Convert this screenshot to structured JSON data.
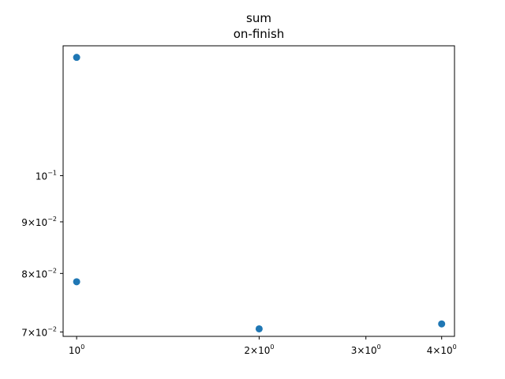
{
  "chart_data": {
    "type": "scatter",
    "title": "sum",
    "subtitle": "on-finish",
    "xlabel": "",
    "ylabel": "",
    "xscale": "log",
    "yscale": "log",
    "xlim": [
      0.95,
      4.2
    ],
    "ylim": [
      0.0693,
      0.1345
    ],
    "grid": false,
    "legend": "none",
    "marker_color": "#1f77b4",
    "x_ticks": [
      {
        "value": 1,
        "base": "10",
        "exp": "0"
      },
      {
        "value": 2,
        "base": "2×10",
        "exp": "0"
      },
      {
        "value": 3,
        "base": "3×10",
        "exp": "0"
      },
      {
        "value": 4,
        "base": "4×10",
        "exp": "0"
      }
    ],
    "y_ticks": [
      {
        "value": 0.07,
        "base": "7×10",
        "exp": "−2"
      },
      {
        "value": 0.08,
        "base": "8×10",
        "exp": "−2"
      },
      {
        "value": 0.09,
        "base": "9×10",
        "exp": "−2"
      },
      {
        "value": 0.1,
        "base": "10",
        "exp": "−1"
      }
    ],
    "points": [
      {
        "x": 1,
        "y": 0.131
      },
      {
        "x": 1,
        "y": 0.0785
      },
      {
        "x": 2,
        "y": 0.0705
      },
      {
        "x": 4,
        "y": 0.0713
      }
    ]
  }
}
